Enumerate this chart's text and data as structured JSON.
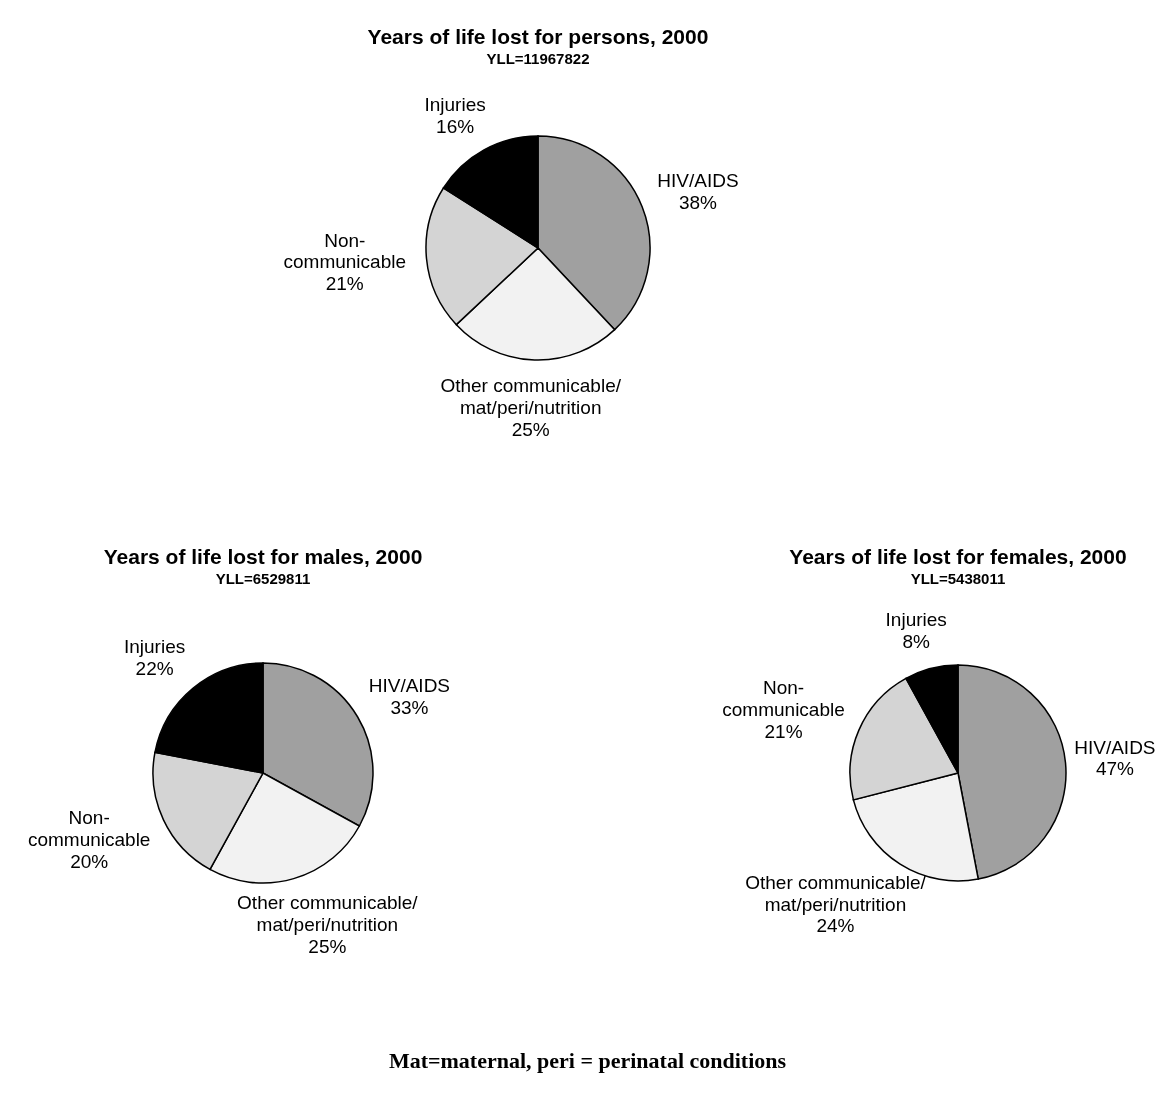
{
  "chart_data": [
    {
      "type": "pie",
      "title": "Years of life lost for persons, 2000",
      "subtitle": "YLL=11967822",
      "categories": [
        "HIV/AIDS",
        "Other communicable/mat/peri/nutrition",
        "Non-communicable",
        "Injuries"
      ],
      "values": [
        38,
        25,
        21,
        16
      ],
      "colors": [
        "#a0a0a0",
        "#f2f2f2",
        "#d4d4d4",
        "#000000"
      ],
      "value_labels": [
        "38%",
        "25%",
        "21%",
        "16%"
      ]
    },
    {
      "type": "pie",
      "title": "Years of life lost for males, 2000",
      "subtitle": "YLL=6529811",
      "categories": [
        "HIV/AIDS",
        "Other communicable/mat/peri/nutrition",
        "Non-communicable",
        "Injuries"
      ],
      "values": [
        33,
        25,
        20,
        22
      ],
      "colors": [
        "#a0a0a0",
        "#f2f2f2",
        "#d4d4d4",
        "#000000"
      ],
      "value_labels": [
        "33%",
        "25%",
        "20%",
        "22%"
      ]
    },
    {
      "type": "pie",
      "title": "Years of life lost for females, 2000",
      "subtitle": "YLL=5438011",
      "categories": [
        "HIV/AIDS",
        "Other communicable/mat/peri/nutrition",
        "Non-communicable",
        "Injuries"
      ],
      "values": [
        47,
        24,
        21,
        8
      ],
      "colors": [
        "#a0a0a0",
        "#f2f2f2",
        "#d4d4d4",
        "#000000"
      ],
      "value_labels": [
        "47%",
        "24%",
        "21%",
        "8%"
      ],
      "annotations": [
        "Mat=maternal, peri = perinatal conditions"
      ]
    }
  ]
}
